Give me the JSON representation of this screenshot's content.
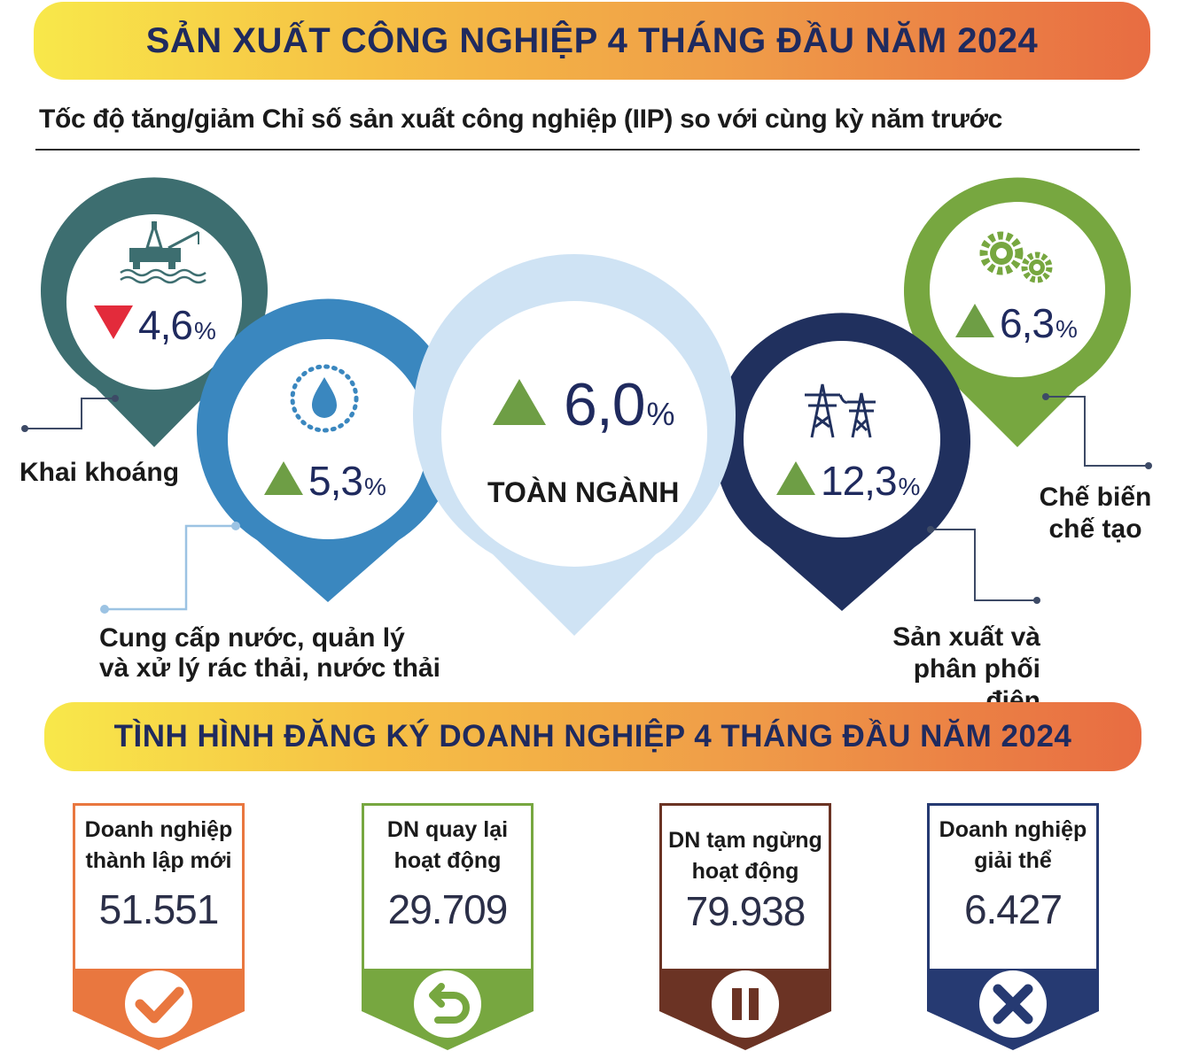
{
  "header": {
    "title": "SẢN XUẤT CÔNG NGHIỆP 4 THÁNG ĐẦU NĂM 2024",
    "subtitle": "Tốc độ tăng/giảm Chỉ số sản xuất công nghiệp (IIP) so với cùng kỳ năm trước"
  },
  "colors": {
    "mining": "#3d6e70",
    "water": "#3a87bf",
    "total": "#cfe3f4",
    "electricity": "#20305e",
    "manufacturing": "#77a740",
    "up_arrow": "#6e9e45",
    "down_arrow": "#e32b3b"
  },
  "iip": {
    "unit": "%",
    "mining": {
      "direction": "down",
      "value": "4,6",
      "label": "Khai khoáng",
      "icon": "oil-rig-icon"
    },
    "water": {
      "direction": "up",
      "value": "5,3",
      "label_line1": "Cung cấp nước, quản lý",
      "label_line2": "và xử lý rác thải, nước thải",
      "icon": "water-drop-icon"
    },
    "total": {
      "direction": "up",
      "value": "6,0",
      "label": "TOÀN NGÀNH"
    },
    "electricity": {
      "direction": "up",
      "value": "12,3",
      "label_line1": "Sản xuất và",
      "label_line2": "phân phối điện",
      "icon": "power-tower-icon"
    },
    "manufacturing": {
      "direction": "up",
      "value": "6,3",
      "label_line1": "Chế biến",
      "label_line2": "chế tạo",
      "icon": "gears-icon"
    }
  },
  "business": {
    "title": "TÌNH HÌNH ĐĂNG KÝ DOANH NGHIỆP 4 THÁNG ĐẦU NĂM 2024",
    "cards": [
      {
        "title_line1": "Doanh nghiệp",
        "title_line2": "thành lập mới",
        "value": "51.551",
        "color": "#e9773f",
        "icon": "check-icon"
      },
      {
        "title_line1": "DN quay lại",
        "title_line2": "hoạt động",
        "value": "29.709",
        "color": "#77a740",
        "icon": "return-icon"
      },
      {
        "title_line1": "DN tạm ngừng",
        "title_line2": "hoạt động",
        "value": "79.938",
        "color": "#6b3324",
        "icon": "pause-icon"
      },
      {
        "title_line1": "Doanh nghiệp",
        "title_line2": "giải thể",
        "value": "6.427",
        "color": "#263a72",
        "icon": "x-icon"
      }
    ]
  }
}
